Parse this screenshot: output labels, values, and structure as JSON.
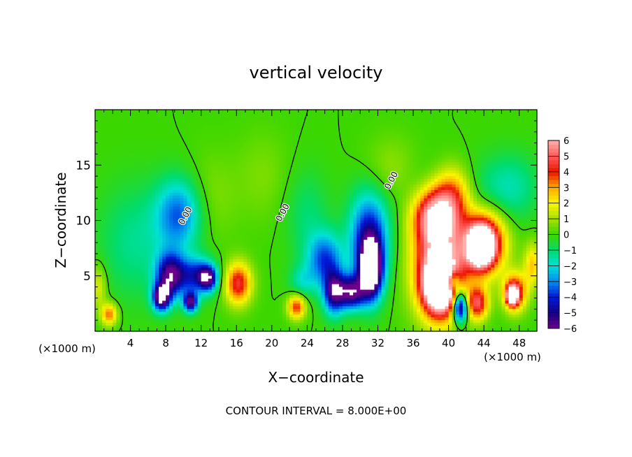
{
  "chart_data": {
    "type": "heatmap",
    "title": "vertical velocity",
    "xlabel": "X−coordinate",
    "ylabel": "Z−coordinate",
    "x_unit_left": "(×1000 m)",
    "x_unit_right": "(×1000 m)",
    "footer": "CONTOUR INTERVAL = 8.000E+00",
    "xlim": [
      0,
      50
    ],
    "ylim": [
      0,
      20
    ],
    "x_ticks": [
      4,
      8,
      12,
      16,
      20,
      24,
      28,
      32,
      36,
      40,
      44,
      48
    ],
    "x_tick_labels": [
      "4",
      "8",
      "12",
      "16",
      "20",
      "24",
      "28",
      "32",
      "36",
      "40",
      "44",
      "48"
    ],
    "y_ticks": [
      5,
      10,
      15
    ],
    "y_tick_labels": [
      "5",
      "10",
      "15"
    ],
    "colorbar": {
      "min": -6,
      "max": 6,
      "labels": [
        "6",
        "5",
        "4",
        "3",
        "2",
        "1",
        "0",
        "−1",
        "−2",
        "−3",
        "−4",
        "−5",
        "−6"
      ],
      "label_values": [
        6,
        5,
        4,
        3,
        2,
        1,
        0,
        -1,
        -2,
        -3,
        -4,
        -5,
        -6
      ]
    },
    "contour_labels": [
      {
        "text": "0.00",
        "x": 10.5,
        "z": 10.3
      },
      {
        "text": "0.00",
        "x": 21.5,
        "z": 10.6
      },
      {
        "text": "0.00",
        "x": 33.8,
        "z": 13.5
      }
    ],
    "features": [
      {
        "kind": "downdraft",
        "x": 8.5,
        "z": 5.0,
        "peak": -7
      },
      {
        "kind": "downdraft",
        "x": 31.0,
        "z": 7.0,
        "peak": -7
      },
      {
        "kind": "updraft",
        "x": 39.0,
        "z": 6.0,
        "peak": 7
      },
      {
        "kind": "updraft",
        "x": 44.0,
        "z": 8.0,
        "peak": 7
      },
      {
        "kind": "updraft",
        "x": 16.0,
        "z": 4.0,
        "peak": 4.5
      },
      {
        "kind": "updraft",
        "x": 47.5,
        "z": 3.5,
        "peak": 5
      }
    ],
    "grid": false,
    "legend": "right"
  }
}
